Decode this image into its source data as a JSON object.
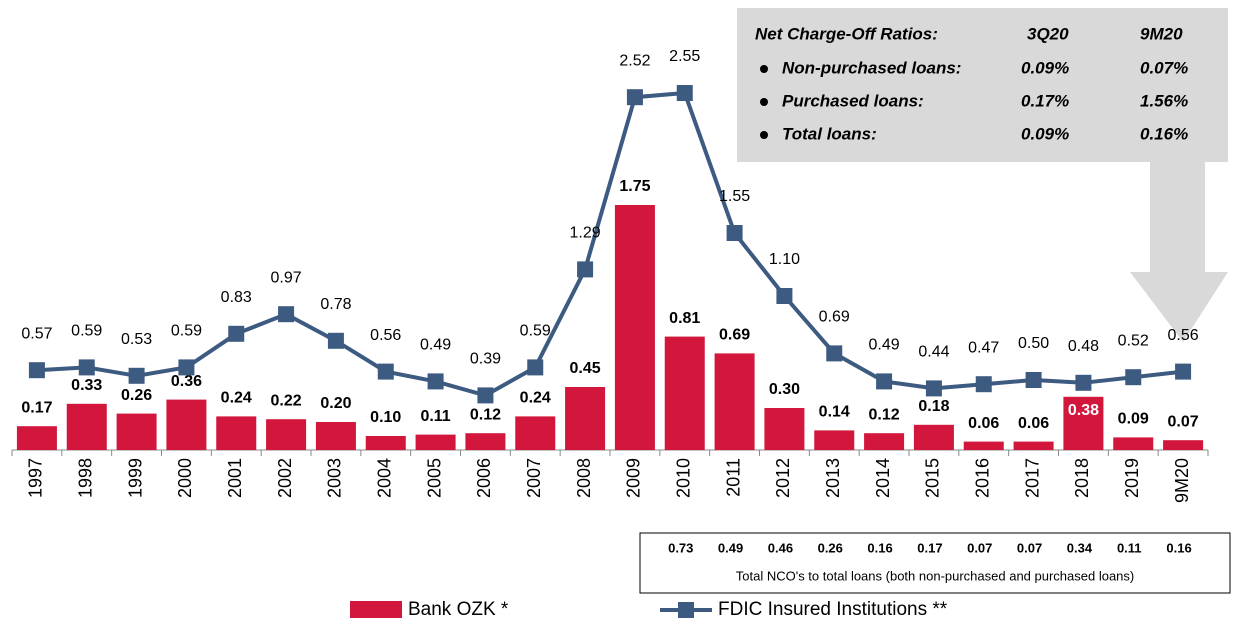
{
  "chart_data": {
    "type": "bar_line",
    "categories": [
      "1997",
      "1998",
      "1999",
      "2000",
      "2001",
      "2002",
      "2003",
      "2004",
      "2005",
      "2006",
      "2007",
      "2008",
      "2009",
      "2010",
      "2011",
      "2012",
      "2013",
      "2014",
      "2015",
      "2016",
      "2017",
      "2018",
      "2019",
      "9M20"
    ],
    "ylim": [
      0,
      3.2
    ],
    "series": [
      {
        "name": "Bank OZK *",
        "type": "bar",
        "color": "#d2163c",
        "values": [
          0.17,
          0.33,
          0.26,
          0.36,
          0.24,
          0.22,
          0.2,
          0.1,
          0.11,
          0.12,
          0.24,
          0.45,
          1.75,
          0.81,
          0.69,
          0.3,
          0.14,
          0.12,
          0.18,
          0.06,
          0.06,
          0.38,
          0.09,
          0.07
        ],
        "value_labels": [
          "0.17",
          "0.33",
          "0.26",
          "0.36",
          "0.24",
          "0.22",
          "0.20",
          "0.10",
          "0.11",
          "0.12",
          "0.24",
          "0.45",
          "1.75",
          "0.81",
          "0.69",
          "0.30",
          "0.14",
          "0.12",
          "0.18",
          "0.06",
          "0.06",
          "0.38",
          "0.09",
          "0.07"
        ],
        "label_colors": [
          "#000",
          "#000",
          "#000",
          "#000",
          "#000",
          "#000",
          "#000",
          "#000",
          "#000",
          "#000",
          "#000",
          "#000",
          "#000",
          "#000",
          "#000",
          "#000",
          "#000",
          "#000",
          "#000",
          "#000",
          "#000",
          "#fff",
          "#000",
          "#000"
        ]
      },
      {
        "name": "FDIC Insured Institutions **",
        "type": "line",
        "color": "#3d5a80",
        "values": [
          0.57,
          0.59,
          0.53,
          0.59,
          0.83,
          0.97,
          0.78,
          0.56,
          0.49,
          0.39,
          0.59,
          1.29,
          2.52,
          2.55,
          1.55,
          1.1,
          0.69,
          0.49,
          0.44,
          0.47,
          0.5,
          0.48,
          0.52,
          0.56
        ],
        "value_labels": [
          "0.57",
          "0.59",
          "0.53",
          "0.59",
          "0.83",
          "0.97",
          "0.78",
          "0.56",
          "0.49",
          "0.39",
          "0.59",
          "1.29",
          "2.52",
          "2.55",
          "1.55",
          "1.10",
          "0.69",
          "0.49",
          "0.44",
          "0.47",
          "0.50",
          "0.48",
          "0.52",
          "0.56"
        ]
      }
    ]
  },
  "callout": {
    "header": [
      "Net Charge-Off Ratios:",
      "3Q20",
      "9M20"
    ],
    "rows": [
      [
        "Non-purchased loans:",
        "0.09%",
        "0.07%"
      ],
      [
        "Purchased loans:",
        "0.17%",
        "1.56%"
      ],
      [
        "Total loans:",
        "0.09%",
        "0.16%"
      ]
    ]
  },
  "nco_table": {
    "values": [
      "0.73",
      "0.49",
      "0.46",
      "0.26",
      "0.16",
      "0.17",
      "0.07",
      "0.07",
      "0.34",
      "0.11",
      "0.16"
    ],
    "caption": "Total NCO's to total loans (both non-purchased and purchased loans)"
  }
}
